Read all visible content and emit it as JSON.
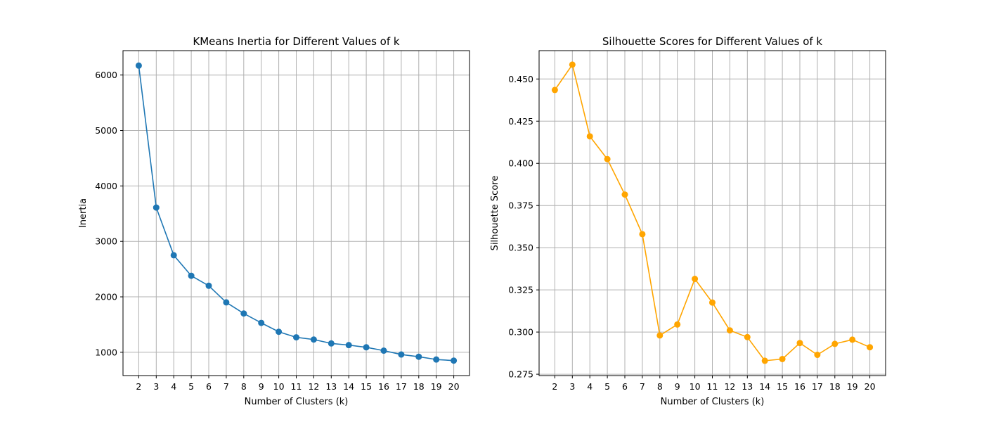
{
  "chart_data": [
    {
      "type": "line",
      "title": "KMeans Inertia for Different Values of k",
      "xlabel": "Number of Clusters (k)",
      "ylabel": "Inertia",
      "x": [
        2,
        3,
        4,
        5,
        6,
        7,
        8,
        9,
        10,
        11,
        12,
        13,
        14,
        15,
        16,
        17,
        18,
        19,
        20
      ],
      "series": [
        {
          "values": [
            6170,
            3610,
            2750,
            2380,
            2200,
            1900,
            1700,
            1530,
            1370,
            1270,
            1230,
            1160,
            1130,
            1090,
            1030,
            960,
            920,
            870,
            850
          ]
        }
      ],
      "xlim": [
        1.1,
        20.9
      ],
      "ylim": [
        580,
        6440
      ],
      "yticks": [
        1000,
        2000,
        3000,
        4000,
        5000,
        6000
      ],
      "ytick_decimals": 0,
      "grid": true,
      "marker": "circle",
      "color": "#1f77b4"
    },
    {
      "type": "line",
      "title": "Silhouette Scores for Different Values of k",
      "xlabel": "Number of Clusters (k)",
      "ylabel": "Silhouette Score",
      "x": [
        2,
        3,
        4,
        5,
        6,
        7,
        8,
        9,
        10,
        11,
        12,
        13,
        14,
        15,
        16,
        17,
        18,
        19,
        20
      ],
      "series": [
        {
          "values": [
            0.4435,
            0.4585,
            0.416,
            0.4025,
            0.3815,
            0.358,
            0.298,
            0.3045,
            0.3315,
            0.3175,
            0.301,
            0.297,
            0.283,
            0.284,
            0.2935,
            0.2865,
            0.293,
            0.2955,
            0.291
          ]
        }
      ],
      "xlim": [
        1.1,
        20.9
      ],
      "ylim": [
        0.2742,
        0.4668
      ],
      "yticks": [
        0.275,
        0.3,
        0.325,
        0.35,
        0.375,
        0.4,
        0.425,
        0.45
      ],
      "ytick_decimals": 3,
      "grid": true,
      "marker": "circle",
      "color": "#ffa500"
    }
  ]
}
